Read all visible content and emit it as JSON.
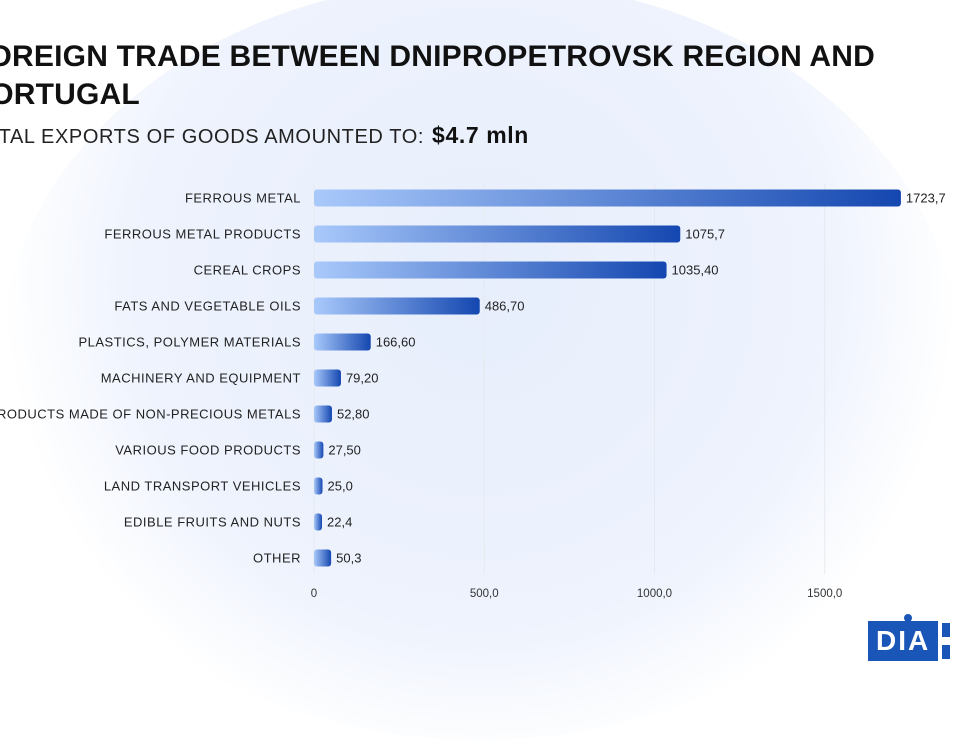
{
  "header": {
    "title": "FOREIGN TRADE BETWEEN DNIPROPETROVSK REGION AND PORTUGAL",
    "subtitle_prefix": "TOTAL EXPORTS OF GOODS AMOUNTED TO:",
    "subtitle_total": "$4.7 mln"
  },
  "logo": {
    "text": "DIA"
  },
  "colors": {
    "bar_start": "#a9c9fb",
    "bar_end": "#1447b0",
    "grid": "#e6e9ef",
    "background_circle": "#e9effc"
  },
  "chart_data": {
    "type": "bar",
    "orientation": "horizontal",
    "categories": [
      "FERROUS METAL",
      "FERROUS METAL PRODUCTS",
      "CEREAL CROPS",
      "FATS AND VEGETABLE OILS",
      "PLASTICS, POLYMER MATERIALS",
      "MACHINERY AND EQUIPMENT",
      "PRODUCTS MADE OF NON-PRECIOUS METALS",
      "VARIOUS FOOD PRODUCTS",
      "LAND TRANSPORT VEHICLES",
      "EDIBLE FRUITS AND NUTS",
      "OTHER"
    ],
    "values": [
      1723.7,
      1075.7,
      1035.4,
      486.7,
      166.6,
      79.2,
      52.8,
      27.5,
      25.0,
      22.4,
      50.3
    ],
    "value_labels": [
      "1723,7",
      "1075,7",
      "1035,40",
      "486,70",
      "166,60",
      "79,20",
      "52,80",
      "27,50",
      "25,0",
      "22,4",
      "50,3"
    ],
    "xticks": [
      0,
      500,
      1000,
      1500
    ],
    "xtick_labels": [
      "0",
      "500,0",
      "1000,0",
      "1500,0"
    ],
    "xlim": [
      0,
      1800
    ],
    "grid": true,
    "title": "",
    "xlabel": "",
    "ylabel": ""
  }
}
